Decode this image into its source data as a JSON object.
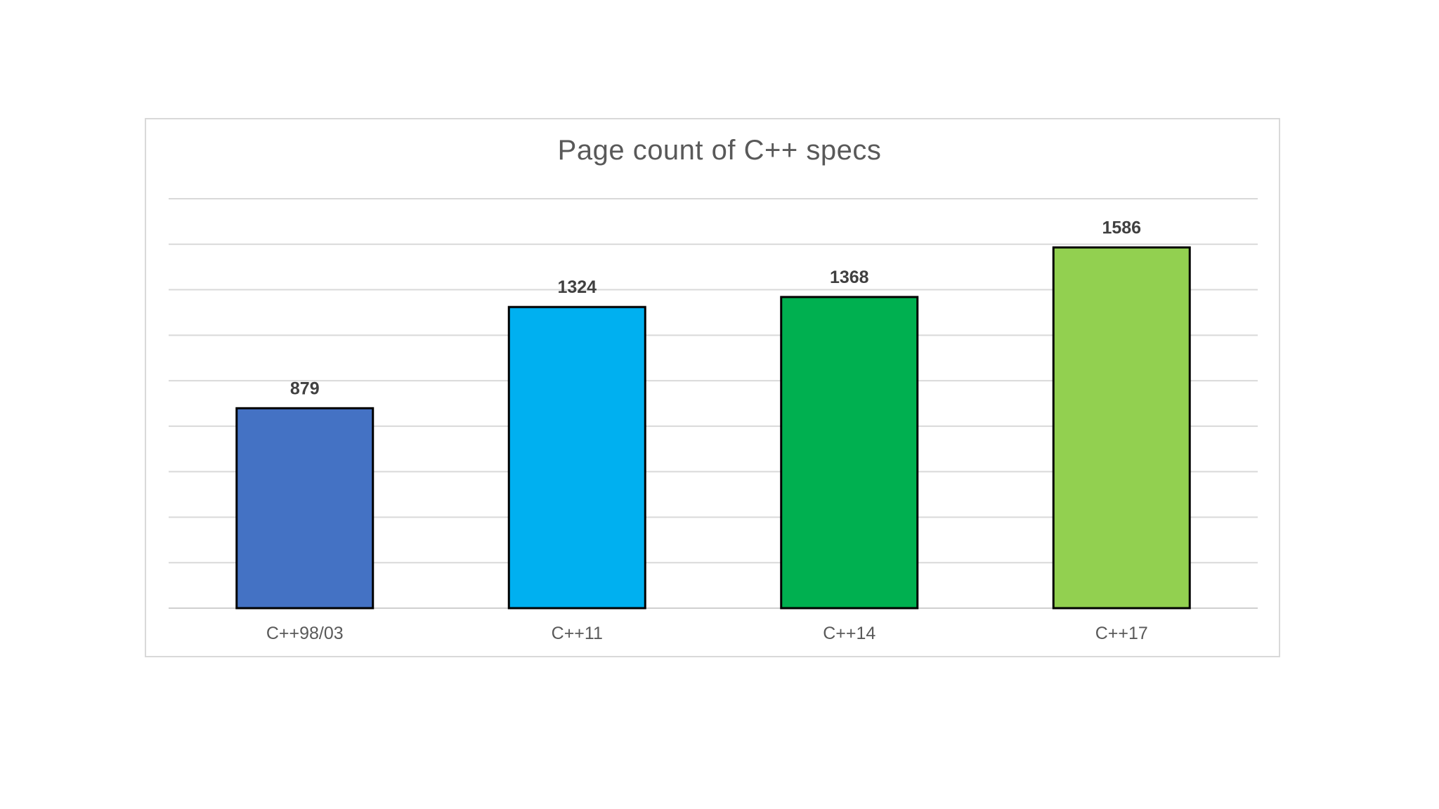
{
  "chart_data": {
    "type": "bar",
    "title": "Page count of C++ specs",
    "categories": [
      "C++98/03",
      "C++11",
      "C++14",
      "C++17"
    ],
    "values": [
      879,
      1324,
      1368,
      1586
    ],
    "colors": [
      "#4472c4",
      "#00b0f0",
      "#00b050",
      "#92d050"
    ],
    "xlabel": "",
    "ylabel": "",
    "ylim": [
      0,
      1800
    ],
    "grid": true,
    "legend": "none",
    "data_labels": true
  }
}
